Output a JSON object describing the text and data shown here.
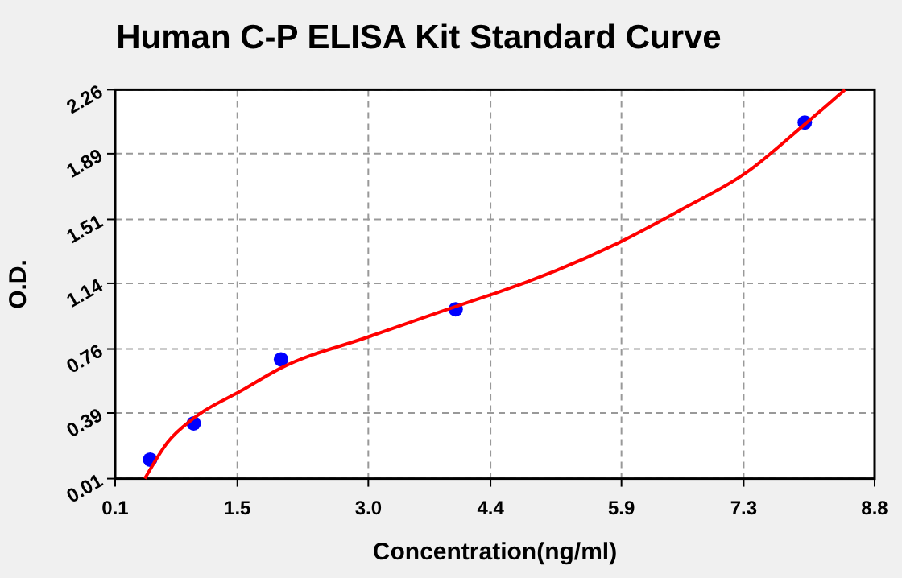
{
  "chart_data": {
    "type": "scatter",
    "title": "Human C-P ELISA Kit Standard Curve",
    "xlabel": "Concentration(ng/ml)",
    "ylabel": "O.D.",
    "xlim": [
      0.1,
      8.8
    ],
    "xticks": [
      0.1,
      1.5,
      {
        "value": 3.0,
        "label": "3.0"
      },
      4.4,
      5.9,
      7.3,
      8.8
    ],
    "ylim": [
      0.01,
      2.26
    ],
    "yticks": [
      0.01,
      0.39,
      0.76,
      1.14,
      1.51,
      1.89,
      2.26
    ],
    "grid": true,
    "series": [
      {
        "color": "#0000ff",
        "marker": "circle",
        "x": [
          0.5,
          1.0,
          2.0,
          4.0,
          8.0
        ],
        "values": [
          0.12,
          0.33,
          0.7,
          0.99,
          2.07
        ]
      },
      {
        "type": "line",
        "color": "#ff0000",
        "marker": "none",
        "line_style": "solid",
        "x": [
          0.44,
          0.7,
          1.0,
          1.55,
          2.0,
          3.0,
          4.32,
          4.44,
          5.89,
          6.6,
          7.33,
          8.0,
          8.46
        ],
        "values": [
          0.01,
          0.22,
          0.36,
          0.52,
          0.65,
          0.83,
          1.06,
          1.08,
          1.38,
          1.57,
          1.78,
          2.06,
          2.26
        ]
      }
    ]
  }
}
